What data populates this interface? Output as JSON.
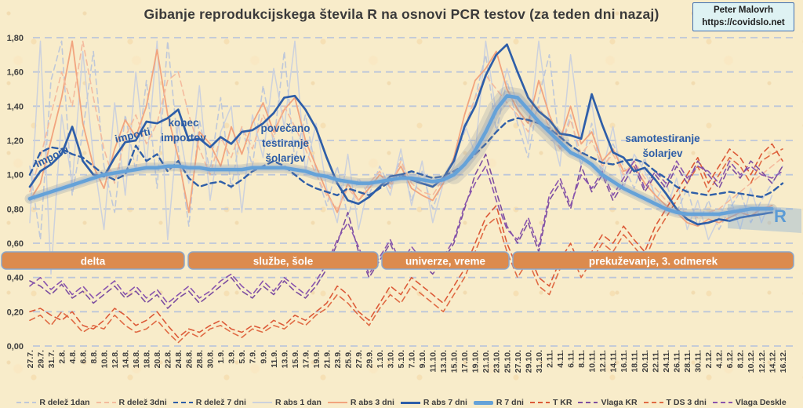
{
  "header": {
    "title": "Gibanje reprodukcijskega števila R na osnovi PCR testov (za teden dni nazaj)",
    "attribution_line1": "Peter Malovrh",
    "attribution_line2": "https://covidslo.net"
  },
  "annotations": {
    "importi_left": "importi",
    "importi_mid": "importi",
    "konec": [
      "konec",
      "importov"
    ],
    "povecano": [
      "povečano",
      "testiranje",
      "šolarjev"
    ],
    "samotestiranje": [
      "samotestiranje",
      "šolarjev"
    ],
    "r_end": "R"
  },
  "colors": {
    "accent_blue": "#2e5ea8",
    "light_blue": "#5b9bd5",
    "band_orange": "#dc8b4e",
    "band_border": "#8aa7cc",
    "grid": "#b9c5da",
    "salmon_solid": "#f2a47e",
    "salmon_dashed": "#f4bb9e",
    "gray_solid": "#ccd1dd",
    "gray_dashed": "#bfc8d9",
    "red_dashed": "#dc5a38",
    "purple_dashed": "#7d4fa0",
    "background": "#f8ecca"
  },
  "chart_data": {
    "type": "line",
    "title": "Gibanje reprodukcijskega števila R na osnovi PCR testov (za teden dni nazaj)",
    "xlabel": "",
    "ylabel": "",
    "ylim": [
      0.0,
      1.8
    ],
    "y_tick_step": 0.2,
    "grid": "horizontal-dashed",
    "legend_position": "bottom",
    "y_tick_labels": [
      "0,00",
      "0,20",
      "0,40",
      "0,60",
      "0,80",
      "1,00",
      "1,20",
      "1,40",
      "1,60",
      "1,80"
    ],
    "x_labels": [
      "27.7.",
      "29.7.",
      "31.7.",
      "2.8.",
      "4.8.",
      "6.8.",
      "8.8.",
      "10.8.",
      "12.8.",
      "14.8.",
      "16.8.",
      "18.8.",
      "20.8.",
      "22.8.",
      "24.8.",
      "26.8.",
      "28.8.",
      "30.8.",
      "1.9.",
      "3.9.",
      "5.9.",
      "7.9.",
      "9.9.",
      "11.9.",
      "13.9.",
      "15.9.",
      "17.9.",
      "19.9.",
      "21.9.",
      "23.9.",
      "25.9.",
      "27.9.",
      "29.9.",
      "1.10.",
      "3.10.",
      "5.10.",
      "7.10.",
      "9.10.",
      "11.10.",
      "13.10.",
      "15.10.",
      "17.10.",
      "19.10.",
      "21.10.",
      "23.10.",
      "25.10.",
      "27.10.",
      "29.10.",
      "31.10.",
      "2.11.",
      "4.11.",
      "6.11.",
      "8.11.",
      "10.11.",
      "12.11.",
      "14.11.",
      "16.11.",
      "18.11.",
      "20.11.",
      "22.11.",
      "24.11.",
      "26.11.",
      "28.11.",
      "30.11.",
      "2.12.",
      "4.12.",
      "6.12.",
      "8.12.",
      "10.12.",
      "12.12.",
      "14.12.",
      "16.12."
    ],
    "annotation_bands": [
      {
        "label": "delta"
      },
      {
        "label": "službe, šole"
      },
      {
        "label": "univerze, vreme"
      },
      {
        "label": "prekuževanje, 3. odmerek"
      }
    ],
    "series": [
      {
        "name": "R delež 1dan",
        "color": "#bfc8d9",
        "style": "dashed",
        "weight": 1.6,
        "values": [
          1.05,
          0.62,
          1.55,
          1.78,
          0.88,
          1.25,
          1.72,
          1.05,
          0.78,
          1.35,
          1.02,
          1.55,
          0.92,
          1.78,
          1.15,
          0.7,
          1.32,
          1.02,
          1.45,
          0.92,
          1.28,
          1.05,
          1.52,
          1.18,
          1.72,
          1.08,
          1.35,
          1.02,
          0.82,
          1.05,
          0.75,
          0.98,
          0.88,
          1.05,
          0.92,
          1.1,
          0.85,
          1.02,
          0.8,
          0.98,
          1.1,
          1.25,
          1.45,
          1.7,
          1.25,
          1.55,
          1.3,
          1.1,
          1.45,
          1.7,
          1.15,
          1.35,
          1.05,
          1.3,
          0.98,
          1.18,
          1.05,
          0.92,
          1.1,
          0.85,
          0.95,
          0.78,
          0.92,
          0.7,
          0.85,
          0.68,
          0.8,
          0.9,
          0.72,
          0.85,
          0.95,
          1.05
        ]
      },
      {
        "name": "R delež 3dni",
        "color": "#f4bb9e",
        "style": "dashed",
        "weight": 1.6,
        "values": [
          0.9,
          1.1,
          1.35,
          1.6,
          1.4,
          1.78,
          1.45,
          1.15,
          0.95,
          1.22,
          1.35,
          1.18,
          1.3,
          1.55,
          1.6,
          1.35,
          1.15,
          1.0,
          1.22,
          1.1,
          1.28,
          1.15,
          1.35,
          1.22,
          1.4,
          1.28,
          1.15,
          1.0,
          0.88,
          0.8,
          0.92,
          0.85,
          0.95,
          1.02,
          0.92,
          1.08,
          0.95,
          0.9,
          0.88,
          0.98,
          1.08,
          1.28,
          1.45,
          1.58,
          1.5,
          1.42,
          1.35,
          1.25,
          1.4,
          1.28,
          1.15,
          1.32,
          1.12,
          1.2,
          1.05,
          1.12,
          1.0,
          1.08,
          0.98,
          0.92,
          0.85,
          0.8,
          0.78,
          0.75,
          0.78,
          0.8,
          0.85,
          0.9,
          0.95,
          1.0,
          1.05,
          1.1
        ]
      },
      {
        "name": "R delež 7 dni",
        "color": "#2e5ea8",
        "style": "dashed",
        "weight": 2.4,
        "values": [
          1.0,
          1.13,
          1.16,
          1.15,
          1.12,
          1.1,
          1.05,
          1.0,
          0.97,
          1.0,
          1.17,
          1.08,
          1.12,
          1.02,
          1.08,
          0.98,
          0.93,
          0.95,
          0.96,
          0.93,
          0.97,
          1.02,
          1.05,
          1.08,
          1.05,
          1.0,
          0.95,
          0.92,
          0.9,
          0.88,
          0.92,
          0.9,
          0.88,
          0.92,
          0.96,
          1.0,
          1.02,
          1.0,
          0.98,
          0.99,
          1.02,
          1.06,
          1.12,
          1.18,
          1.25,
          1.31,
          1.33,
          1.32,
          1.3,
          1.27,
          1.22,
          1.17,
          1.13,
          1.1,
          1.07,
          1.06,
          1.08,
          1.09,
          1.07,
          1.02,
          0.98,
          0.93,
          0.9,
          0.89,
          0.88,
          0.89,
          0.9,
          0.89,
          0.88,
          0.87,
          0.9,
          0.95
        ]
      },
      {
        "name": "R abs 1 dan",
        "color": "#ccd1dd",
        "style": "solid",
        "weight": 1.5,
        "values": [
          0.72,
          1.78,
          0.42,
          1.35,
          0.95,
          1.72,
          1.1,
          0.68,
          1.42,
          0.88,
          1.6,
          1.05,
          1.78,
          0.62,
          1.3,
          0.95,
          1.52,
          0.85,
          1.25,
          1.4,
          0.78,
          1.35,
          1.1,
          1.62,
          1.28,
          1.78,
          1.02,
          1.3,
          0.92,
          0.72,
          1.12,
          0.68,
          0.95,
          1.02,
          0.88,
          1.15,
          0.82,
          1.08,
          0.72,
          0.95,
          1.05,
          1.3,
          1.12,
          1.78,
          1.35,
          1.62,
          1.4,
          1.18,
          1.78,
          1.3,
          1.05,
          1.7,
          1.22,
          1.42,
          1.02,
          1.28,
          0.92,
          1.12,
          1.02,
          0.88,
          0.78,
          0.98,
          0.68,
          0.85,
          0.62,
          0.75,
          0.88,
          0.68,
          0.92,
          0.72,
          0.88,
          null
        ]
      },
      {
        "name": "R abs 3 dni",
        "color": "#f2a47e",
        "style": "solid",
        "weight": 1.8,
        "values": [
          0.85,
          0.95,
          1.2,
          1.45,
          1.78,
          1.3,
          1.05,
          0.92,
          1.15,
          1.32,
          1.22,
          1.4,
          1.73,
          1.35,
          1.1,
          0.78,
          1.25,
          1.18,
          1.05,
          1.28,
          1.12,
          1.3,
          1.42,
          1.25,
          1.38,
          1.45,
          1.2,
          1.05,
          0.9,
          0.78,
          0.95,
          0.85,
          0.92,
          1.0,
          0.95,
          1.05,
          0.92,
          0.88,
          0.85,
          0.95,
          1.1,
          1.35,
          1.55,
          1.62,
          1.72,
          1.5,
          1.38,
          1.3,
          1.55,
          1.35,
          1.2,
          1.4,
          1.18,
          1.25,
          1.08,
          1.15,
          1.02,
          1.05,
          0.95,
          0.88,
          0.82,
          0.78,
          0.72,
          0.7,
          0.74,
          0.72,
          0.75,
          0.78,
          0.76,
          0.8,
          0.82,
          null
        ]
      },
      {
        "name": "R abs 7 dni",
        "color": "#2e5ea8",
        "style": "solid",
        "weight": 2.7,
        "values": [
          0.93,
          1.02,
          1.06,
          1.12,
          1.28,
          1.08,
          1.0,
          0.99,
          1.1,
          1.19,
          1.2,
          1.31,
          1.3,
          1.33,
          1.38,
          1.2,
          1.21,
          1.16,
          1.22,
          1.18,
          1.25,
          1.26,
          1.3,
          1.36,
          1.45,
          1.46,
          1.38,
          1.27,
          1.1,
          0.95,
          0.85,
          0.83,
          0.87,
          0.93,
          0.99,
          1.0,
          0.97,
          0.95,
          0.93,
          0.98,
          1.08,
          1.28,
          1.4,
          1.58,
          1.7,
          1.76,
          1.6,
          1.45,
          1.37,
          1.32,
          1.24,
          1.23,
          1.21,
          1.47,
          1.29,
          1.13,
          1.1,
          1.02,
          1.04,
          0.97,
          0.89,
          0.8,
          0.74,
          0.71,
          0.72,
          0.74,
          0.73,
          0.75,
          0.76,
          0.77,
          0.78,
          null
        ]
      },
      {
        "name": "R 7 dni",
        "color": "#65a2d8",
        "style": "solid",
        "weight": 4.5,
        "values": [
          0.86,
          0.88,
          0.9,
          0.92,
          0.94,
          0.96,
          0.98,
          1.0,
          1.01,
          1.02,
          1.03,
          1.04,
          1.04,
          1.05,
          1.05,
          1.04,
          1.04,
          1.03,
          1.03,
          1.03,
          1.03,
          1.04,
          1.04,
          1.04,
          1.04,
          1.03,
          1.02,
          1.0,
          0.99,
          0.97,
          0.96,
          0.95,
          0.95,
          0.96,
          0.97,
          0.98,
          0.98,
          0.97,
          0.96,
          0.97,
          1.0,
          1.06,
          1.14,
          1.25,
          1.38,
          1.46,
          1.45,
          1.38,
          1.31,
          1.25,
          1.19,
          1.13,
          1.1,
          1.06,
          1.0,
          0.96,
          0.92,
          0.89,
          0.86,
          0.83,
          0.8,
          0.78,
          0.77,
          0.77,
          0.77,
          0.77,
          0.78,
          0.79,
          0.8,
          0.8,
          0.8,
          null
        ]
      },
      {
        "name": "T KR",
        "color": "#dc5a38",
        "style": "dashed",
        "weight": 1.6,
        "values": [
          0.2,
          0.22,
          0.18,
          0.15,
          0.2,
          0.12,
          0.1,
          0.15,
          0.22,
          0.18,
          0.12,
          0.15,
          0.2,
          0.12,
          0.05,
          0.1,
          0.08,
          0.12,
          0.15,
          0.1,
          0.08,
          0.12,
          0.1,
          0.15,
          0.12,
          0.18,
          0.15,
          0.2,
          0.25,
          0.35,
          0.3,
          0.2,
          0.15,
          0.25,
          0.35,
          0.3,
          0.4,
          0.35,
          0.3,
          0.25,
          0.35,
          0.45,
          0.6,
          0.75,
          0.82,
          0.6,
          0.45,
          0.55,
          0.4,
          0.35,
          0.5,
          0.6,
          0.45,
          0.55,
          0.65,
          0.6,
          0.7,
          0.62,
          0.55,
          0.7,
          0.8,
          0.9,
          1.0,
          1.1,
          0.95,
          1.05,
          1.15,
          1.1,
          1.0,
          1.12,
          1.18,
          1.08
        ]
      },
      {
        "name": "Vlaga KR",
        "color": "#7d4fa0",
        "style": "dashed",
        "weight": 1.6,
        "values": [
          0.38,
          0.35,
          0.3,
          0.36,
          0.28,
          0.32,
          0.25,
          0.3,
          0.35,
          0.28,
          0.32,
          0.25,
          0.3,
          0.22,
          0.28,
          0.32,
          0.25,
          0.3,
          0.35,
          0.4,
          0.32,
          0.28,
          0.35,
          0.3,
          0.38,
          0.32,
          0.28,
          0.35,
          0.45,
          0.6,
          0.78,
          0.55,
          0.4,
          0.5,
          0.6,
          0.45,
          0.55,
          0.48,
          0.42,
          0.5,
          0.6,
          0.8,
          1.0,
          1.12,
          0.9,
          0.7,
          0.6,
          0.72,
          0.55,
          0.85,
          0.95,
          0.8,
          1.05,
          0.9,
          1.0,
          0.85,
          0.95,
          1.05,
          0.9,
          1.0,
          0.92,
          1.05,
          0.95,
          1.08,
          1.0,
          0.92,
          1.05,
          0.98,
          1.08,
          1.02,
          0.95,
          1.05
        ]
      },
      {
        "name": "T DS 3 dni",
        "color": "#e06b45",
        "style": "dashed",
        "weight": 1.6,
        "values": [
          0.15,
          0.18,
          0.12,
          0.2,
          0.15,
          0.08,
          0.12,
          0.1,
          0.18,
          0.12,
          0.08,
          0.1,
          0.15,
          0.08,
          0.02,
          0.08,
          0.05,
          0.1,
          0.12,
          0.08,
          0.05,
          0.1,
          0.08,
          0.12,
          0.1,
          0.15,
          0.12,
          0.18,
          0.22,
          0.3,
          0.25,
          0.18,
          0.12,
          0.22,
          0.3,
          0.25,
          0.35,
          0.3,
          0.25,
          0.2,
          0.3,
          0.4,
          0.55,
          0.7,
          0.75,
          0.55,
          0.4,
          0.5,
          0.35,
          0.3,
          0.45,
          0.55,
          0.4,
          0.5,
          0.6,
          0.55,
          0.65,
          0.58,
          0.5,
          0.65,
          0.75,
          0.85,
          0.95,
          1.05,
          0.9,
          1.0,
          1.1,
          1.05,
          0.95,
          1.08,
          1.12,
          1.15
        ]
      },
      {
        "name": "Vlaga Deskle",
        "color": "#8a55ae",
        "style": "dashed",
        "weight": 1.6,
        "values": [
          0.35,
          0.4,
          0.33,
          0.38,
          0.3,
          0.35,
          0.28,
          0.33,
          0.38,
          0.3,
          0.35,
          0.28,
          0.33,
          0.25,
          0.3,
          0.35,
          0.28,
          0.32,
          0.38,
          0.42,
          0.35,
          0.3,
          0.38,
          0.32,
          0.4,
          0.35,
          0.3,
          0.38,
          0.48,
          0.62,
          0.72,
          0.58,
          0.42,
          0.52,
          0.62,
          0.48,
          0.58,
          0.5,
          0.45,
          0.52,
          0.62,
          0.82,
          0.95,
          1.05,
          0.85,
          0.68,
          0.62,
          0.75,
          0.58,
          0.88,
          0.98,
          0.82,
          1.0,
          0.92,
          1.02,
          0.88,
          0.98,
          1.08,
          0.92,
          1.02,
          0.95,
          1.08,
          0.98,
          1.05,
          1.02,
          0.95,
          1.08,
          1.0,
          1.05,
          1.0,
          0.98,
          1.02
        ]
      }
    ]
  }
}
